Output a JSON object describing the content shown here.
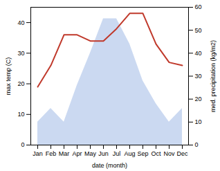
{
  "chart_data": {
    "type": "line",
    "xlabel": "date (month)",
    "ylabel": "max temp (C)",
    "y2label": "med. precipitation (kg/m2)",
    "categories": [
      "Jan",
      "Feb",
      "Mar",
      "Apr",
      "May",
      "Jun",
      "Jul",
      "Aug",
      "Sep",
      "Oct",
      "Nov",
      "Dec"
    ],
    "series": [
      {
        "type": "area",
        "axis": "y2",
        "color": "#c5d5f0",
        "values": [
          10,
          16,
          10,
          26,
          40,
          55,
          55,
          44,
          28,
          18,
          10,
          16
        ]
      },
      {
        "type": "line",
        "axis": "y",
        "color": "#c0392b",
        "values": [
          19,
          26,
          36,
          36,
          34,
          34,
          38,
          43,
          43,
          33,
          27,
          26
        ]
      }
    ],
    "ylim": [
      0,
      45
    ],
    "yticks": [
      0,
      10,
      20,
      30,
      40
    ],
    "y2lim": [
      0,
      60
    ],
    "y2ticks": [
      0,
      10,
      20,
      30,
      40,
      50,
      60
    ]
  }
}
